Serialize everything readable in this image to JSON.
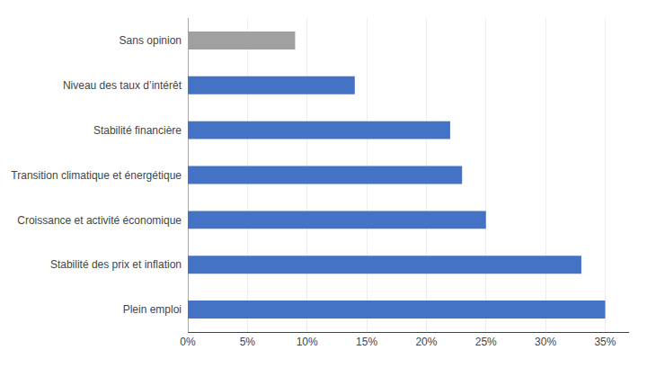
{
  "chart_data": {
    "type": "bar",
    "orientation": "horizontal",
    "categories": [
      "Plein emploi",
      "Stabilité des prix et inflation",
      "Croissance et activité économique",
      "Transition climatique et énergétique",
      "Stabilité financière",
      "Niveau des taux d’intérêt",
      "Sans opinion"
    ],
    "values": [
      0.35,
      0.33,
      0.25,
      0.23,
      0.22,
      0.14,
      0.09
    ],
    "colors": [
      "#4472C4",
      "#4472C4",
      "#4472C4",
      "#4472C4",
      "#4472C4",
      "#4472C4",
      "#A0A0A0"
    ],
    "xlim": [
      0,
      0.37
    ],
    "xticks": [
      {
        "value": 0.0,
        "label": "0%"
      },
      {
        "value": 0.05,
        "label": "5%"
      },
      {
        "value": 0.1,
        "label": "10%"
      },
      {
        "value": 0.15,
        "label": "15%"
      },
      {
        "value": 0.2,
        "label": "20%"
      },
      {
        "value": 0.25,
        "label": "25%"
      },
      {
        "value": 0.3,
        "label": "30%"
      },
      {
        "value": 0.35,
        "label": "35%"
      }
    ],
    "grid": true
  }
}
